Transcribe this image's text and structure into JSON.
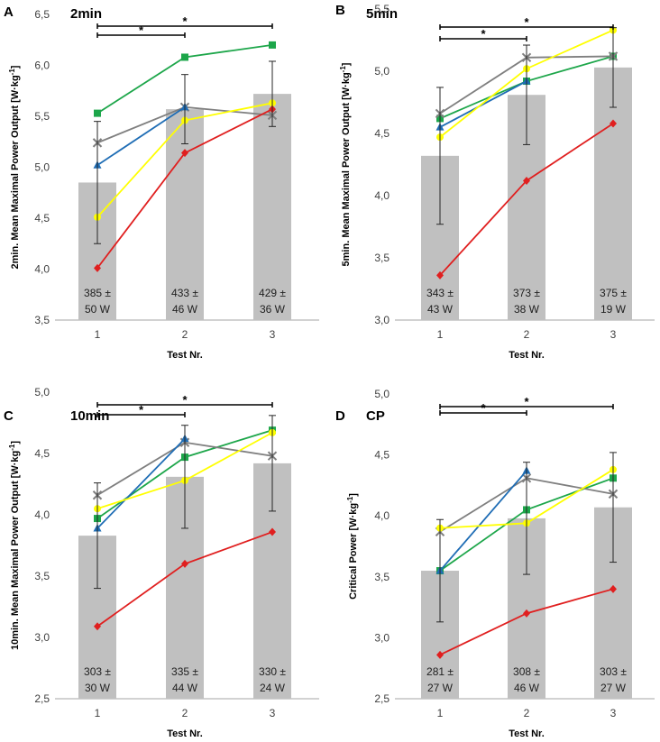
{
  "series_colors": {
    "green": "#1da64a",
    "grey": "#7f7f7f",
    "blue": "#1f6db5",
    "yellow": "#ffff00",
    "red": "#e01f1f",
    "bar": "#c0c0c0"
  },
  "chart_data": [
    {
      "type": "bar+line",
      "panel": "A",
      "title": "2min",
      "xlabel": "Test Nr.",
      "ylabel": "2min. Mean Maximal Power Output [W·kg-1]",
      "ylabel_main": "2min. Mean Maximal Power Output [W·kg",
      "ylabel_sup": "-1",
      "ylabel_end": "]",
      "ylim": [
        3.5,
        6.5
      ],
      "yticks": [
        "3,5",
        "4,0",
        "4,5",
        "5,0",
        "5,5",
        "6,0",
        "6,5"
      ],
      "ytick_values": [
        3.5,
        4.0,
        4.5,
        5.0,
        5.5,
        6.0,
        6.5
      ],
      "categories": [
        "1",
        "2",
        "3"
      ],
      "bars": [
        4.85,
        5.57,
        5.72
      ],
      "bar_errors": [
        0.6,
        0.34,
        0.32
      ],
      "bar_labels": [
        [
          "385 ±",
          "50 W"
        ],
        [
          "433 ±",
          "46 W"
        ],
        [
          "429 ±",
          "36 W"
        ]
      ],
      "series": [
        {
          "name": "green",
          "marker": "square",
          "values": [
            5.53,
            6.08,
            6.2
          ]
        },
        {
          "name": "grey",
          "marker": "x",
          "values": [
            5.24,
            5.59,
            5.51
          ]
        },
        {
          "name": "blue",
          "marker": "triangle",
          "values": [
            5.02,
            5.59,
            null
          ]
        },
        {
          "name": "yellow",
          "marker": "circle",
          "values": [
            4.51,
            5.46,
            5.63
          ]
        },
        {
          "name": "red",
          "marker": "diamond",
          "values": [
            4.01,
            5.14,
            5.57
          ]
        }
      ],
      "significance": [
        {
          "from": 1,
          "to": 2,
          "label": "*"
        },
        {
          "from": 1,
          "to": 3,
          "label": "*"
        }
      ]
    },
    {
      "type": "bar+line",
      "panel": "B",
      "title": "5min",
      "xlabel": "Test Nr.",
      "ylabel": "5min. Mean Maximal Power Output [W·kg-1]",
      "ylabel_main": "5min. Mean Maximal Power Output [W·kg",
      "ylabel_sup": "-1",
      "ylabel_end": "]",
      "ylim": [
        3.0,
        5.5
      ],
      "yticks": [
        "3,0",
        "3,5",
        "4,0",
        "4,5",
        "5,0",
        "5,5"
      ],
      "ytick_values": [
        3.0,
        3.5,
        4.0,
        4.5,
        5.0,
        5.5
      ],
      "categories": [
        "1",
        "2",
        "3"
      ],
      "bars": [
        4.32,
        4.81,
        5.03
      ],
      "bar_errors": [
        0.55,
        0.4,
        0.32
      ],
      "bar_labels": [
        [
          "343 ±",
          "43 W"
        ],
        [
          "373 ±",
          "38 W"
        ],
        [
          "375 ±",
          "19 W"
        ]
      ],
      "series": [
        {
          "name": "green",
          "marker": "square",
          "values": [
            4.62,
            4.92,
            5.12
          ]
        },
        {
          "name": "grey",
          "marker": "x",
          "values": [
            4.66,
            5.11,
            5.12
          ]
        },
        {
          "name": "blue",
          "marker": "triangle",
          "values": [
            4.55,
            4.92,
            null
          ]
        },
        {
          "name": "yellow",
          "marker": "circle",
          "values": [
            4.47,
            5.02,
            5.33
          ]
        },
        {
          "name": "red",
          "marker": "diamond",
          "values": [
            3.36,
            4.12,
            4.58
          ]
        }
      ],
      "significance": [
        {
          "from": 1,
          "to": 2,
          "label": "*"
        },
        {
          "from": 1,
          "to": 3,
          "label": "*"
        }
      ]
    },
    {
      "type": "bar+line",
      "panel": "C",
      "title": "10min",
      "xlabel": "Test Nr.",
      "ylabel": "10min. Mean Maximal Power Output [W·kg-1]",
      "ylabel_main": "10min. Mean Maximal Power Output [W·kg",
      "ylabel_sup": "-1",
      "ylabel_end": "]",
      "ylim": [
        2.5,
        5.0
      ],
      "yticks": [
        "2,5",
        "3,0",
        "3,5",
        "4,0",
        "4,5",
        "5,0"
      ],
      "ytick_values": [
        2.5,
        3.0,
        3.5,
        4.0,
        4.5,
        5.0
      ],
      "categories": [
        "1",
        "2",
        "3"
      ],
      "bars": [
        3.83,
        4.31,
        4.42
      ],
      "bar_errors": [
        0.43,
        0.42,
        0.39
      ],
      "bar_labels": [
        [
          "303 ±",
          "30 W"
        ],
        [
          "335 ±",
          "44 W"
        ],
        [
          "330 ±",
          "24 W"
        ]
      ],
      "series": [
        {
          "name": "green",
          "marker": "square",
          "values": [
            3.97,
            4.47,
            4.69
          ]
        },
        {
          "name": "grey",
          "marker": "x",
          "values": [
            4.16,
            4.59,
            4.48
          ]
        },
        {
          "name": "blue",
          "marker": "triangle",
          "values": [
            3.89,
            4.62,
            null
          ]
        },
        {
          "name": "yellow",
          "marker": "circle",
          "values": [
            4.05,
            4.28,
            4.67
          ]
        },
        {
          "name": "red",
          "marker": "diamond",
          "values": [
            3.09,
            3.6,
            3.86
          ]
        }
      ],
      "significance": [
        {
          "from": 1,
          "to": 2,
          "label": "*"
        },
        {
          "from": 1,
          "to": 3,
          "label": "*"
        }
      ]
    },
    {
      "type": "bar+line",
      "panel": "D",
      "title": "CP",
      "xlabel": "Test Nr.",
      "ylabel": "Critical Power [W·kg-1]",
      "ylabel_main": "Critical Power [W·kg",
      "ylabel_sup": "-1",
      "ylabel_end": "]",
      "ylim": [
        2.5,
        5.0
      ],
      "yticks": [
        "2,5",
        "3,0",
        "3,5",
        "4,0",
        "4,5",
        "5,0"
      ],
      "ytick_values": [
        2.5,
        3.0,
        3.5,
        4.0,
        4.5,
        5.0
      ],
      "categories": [
        "1",
        "2",
        "3"
      ],
      "bars": [
        3.55,
        3.98,
        4.07
      ],
      "bar_errors": [
        0.42,
        0.46,
        0.45
      ],
      "bar_labels": [
        [
          "281 ±",
          "27 W"
        ],
        [
          "308 ±",
          "46 W"
        ],
        [
          "303 ±",
          "27 W"
        ]
      ],
      "series": [
        {
          "name": "green",
          "marker": "square",
          "values": [
            3.55,
            4.05,
            4.31
          ]
        },
        {
          "name": "grey",
          "marker": "x",
          "values": [
            3.87,
            4.31,
            4.18
          ]
        },
        {
          "name": "blue",
          "marker": "triangle",
          "values": [
            3.55,
            4.37,
            null
          ]
        },
        {
          "name": "yellow",
          "marker": "circle",
          "values": [
            3.9,
            3.94,
            4.38
          ]
        },
        {
          "name": "red",
          "marker": "diamond",
          "values": [
            2.86,
            3.2,
            3.4
          ]
        }
      ],
      "significance": [
        {
          "from": 1,
          "to": 2,
          "label": "*"
        },
        {
          "from": 1,
          "to": 3,
          "label": "*"
        }
      ]
    }
  ]
}
